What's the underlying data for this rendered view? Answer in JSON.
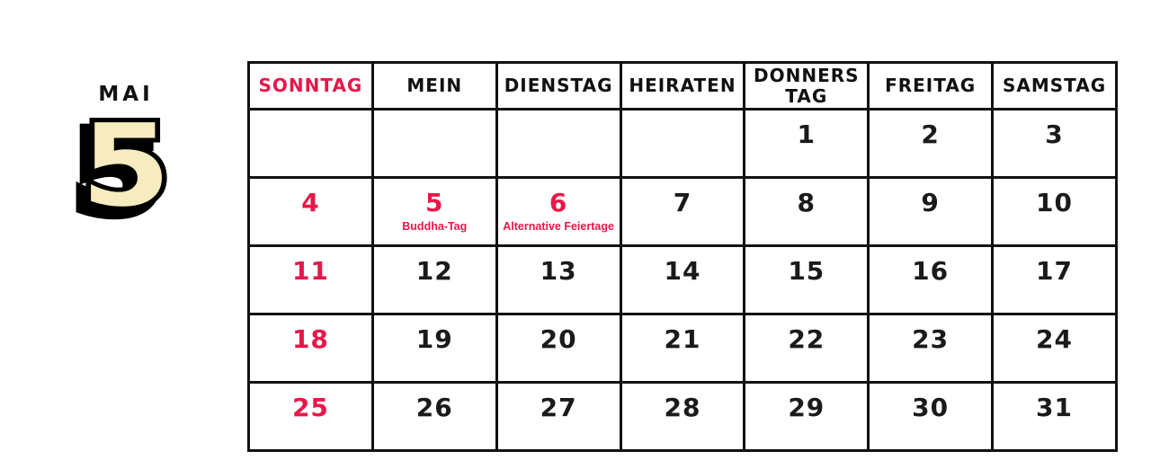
{
  "badge": {
    "month_name": "MAI",
    "month_number": "5"
  },
  "colors": {
    "accent_red": "#e8174a",
    "badge_fill": "#f6ecc0",
    "ink": "#111111"
  },
  "calendar": {
    "headers": [
      {
        "label": "SONNTAG",
        "red": true
      },
      {
        "label": "MEIN",
        "red": false
      },
      {
        "label": "DIENSTAG",
        "red": false
      },
      {
        "label": "HEIRATEN",
        "red": false
      },
      {
        "label": "DONNERS TAG",
        "red": false
      },
      {
        "label": "FREITAG",
        "red": false
      },
      {
        "label": "SAMSTAG",
        "red": false
      }
    ],
    "weeks": [
      [
        {
          "day": ""
        },
        {
          "day": ""
        },
        {
          "day": ""
        },
        {
          "day": ""
        },
        {
          "day": "1"
        },
        {
          "day": "2"
        },
        {
          "day": "3"
        }
      ],
      [
        {
          "day": "4",
          "red": true
        },
        {
          "day": "5",
          "red": true,
          "note": "Buddha-Tag"
        },
        {
          "day": "6",
          "red": true,
          "note": "Alternative Feiertage"
        },
        {
          "day": "7"
        },
        {
          "day": "8"
        },
        {
          "day": "9"
        },
        {
          "day": "10"
        }
      ],
      [
        {
          "day": "11",
          "red": true
        },
        {
          "day": "12"
        },
        {
          "day": "13"
        },
        {
          "day": "14"
        },
        {
          "day": "15"
        },
        {
          "day": "16"
        },
        {
          "day": "17"
        }
      ],
      [
        {
          "day": "18",
          "red": true
        },
        {
          "day": "19"
        },
        {
          "day": "20"
        },
        {
          "day": "21"
        },
        {
          "day": "22"
        },
        {
          "day": "23"
        },
        {
          "day": "24"
        }
      ],
      [
        {
          "day": "25",
          "red": true
        },
        {
          "day": "26"
        },
        {
          "day": "27"
        },
        {
          "day": "28"
        },
        {
          "day": "29"
        },
        {
          "day": "30"
        },
        {
          "day": "31"
        }
      ]
    ]
  }
}
